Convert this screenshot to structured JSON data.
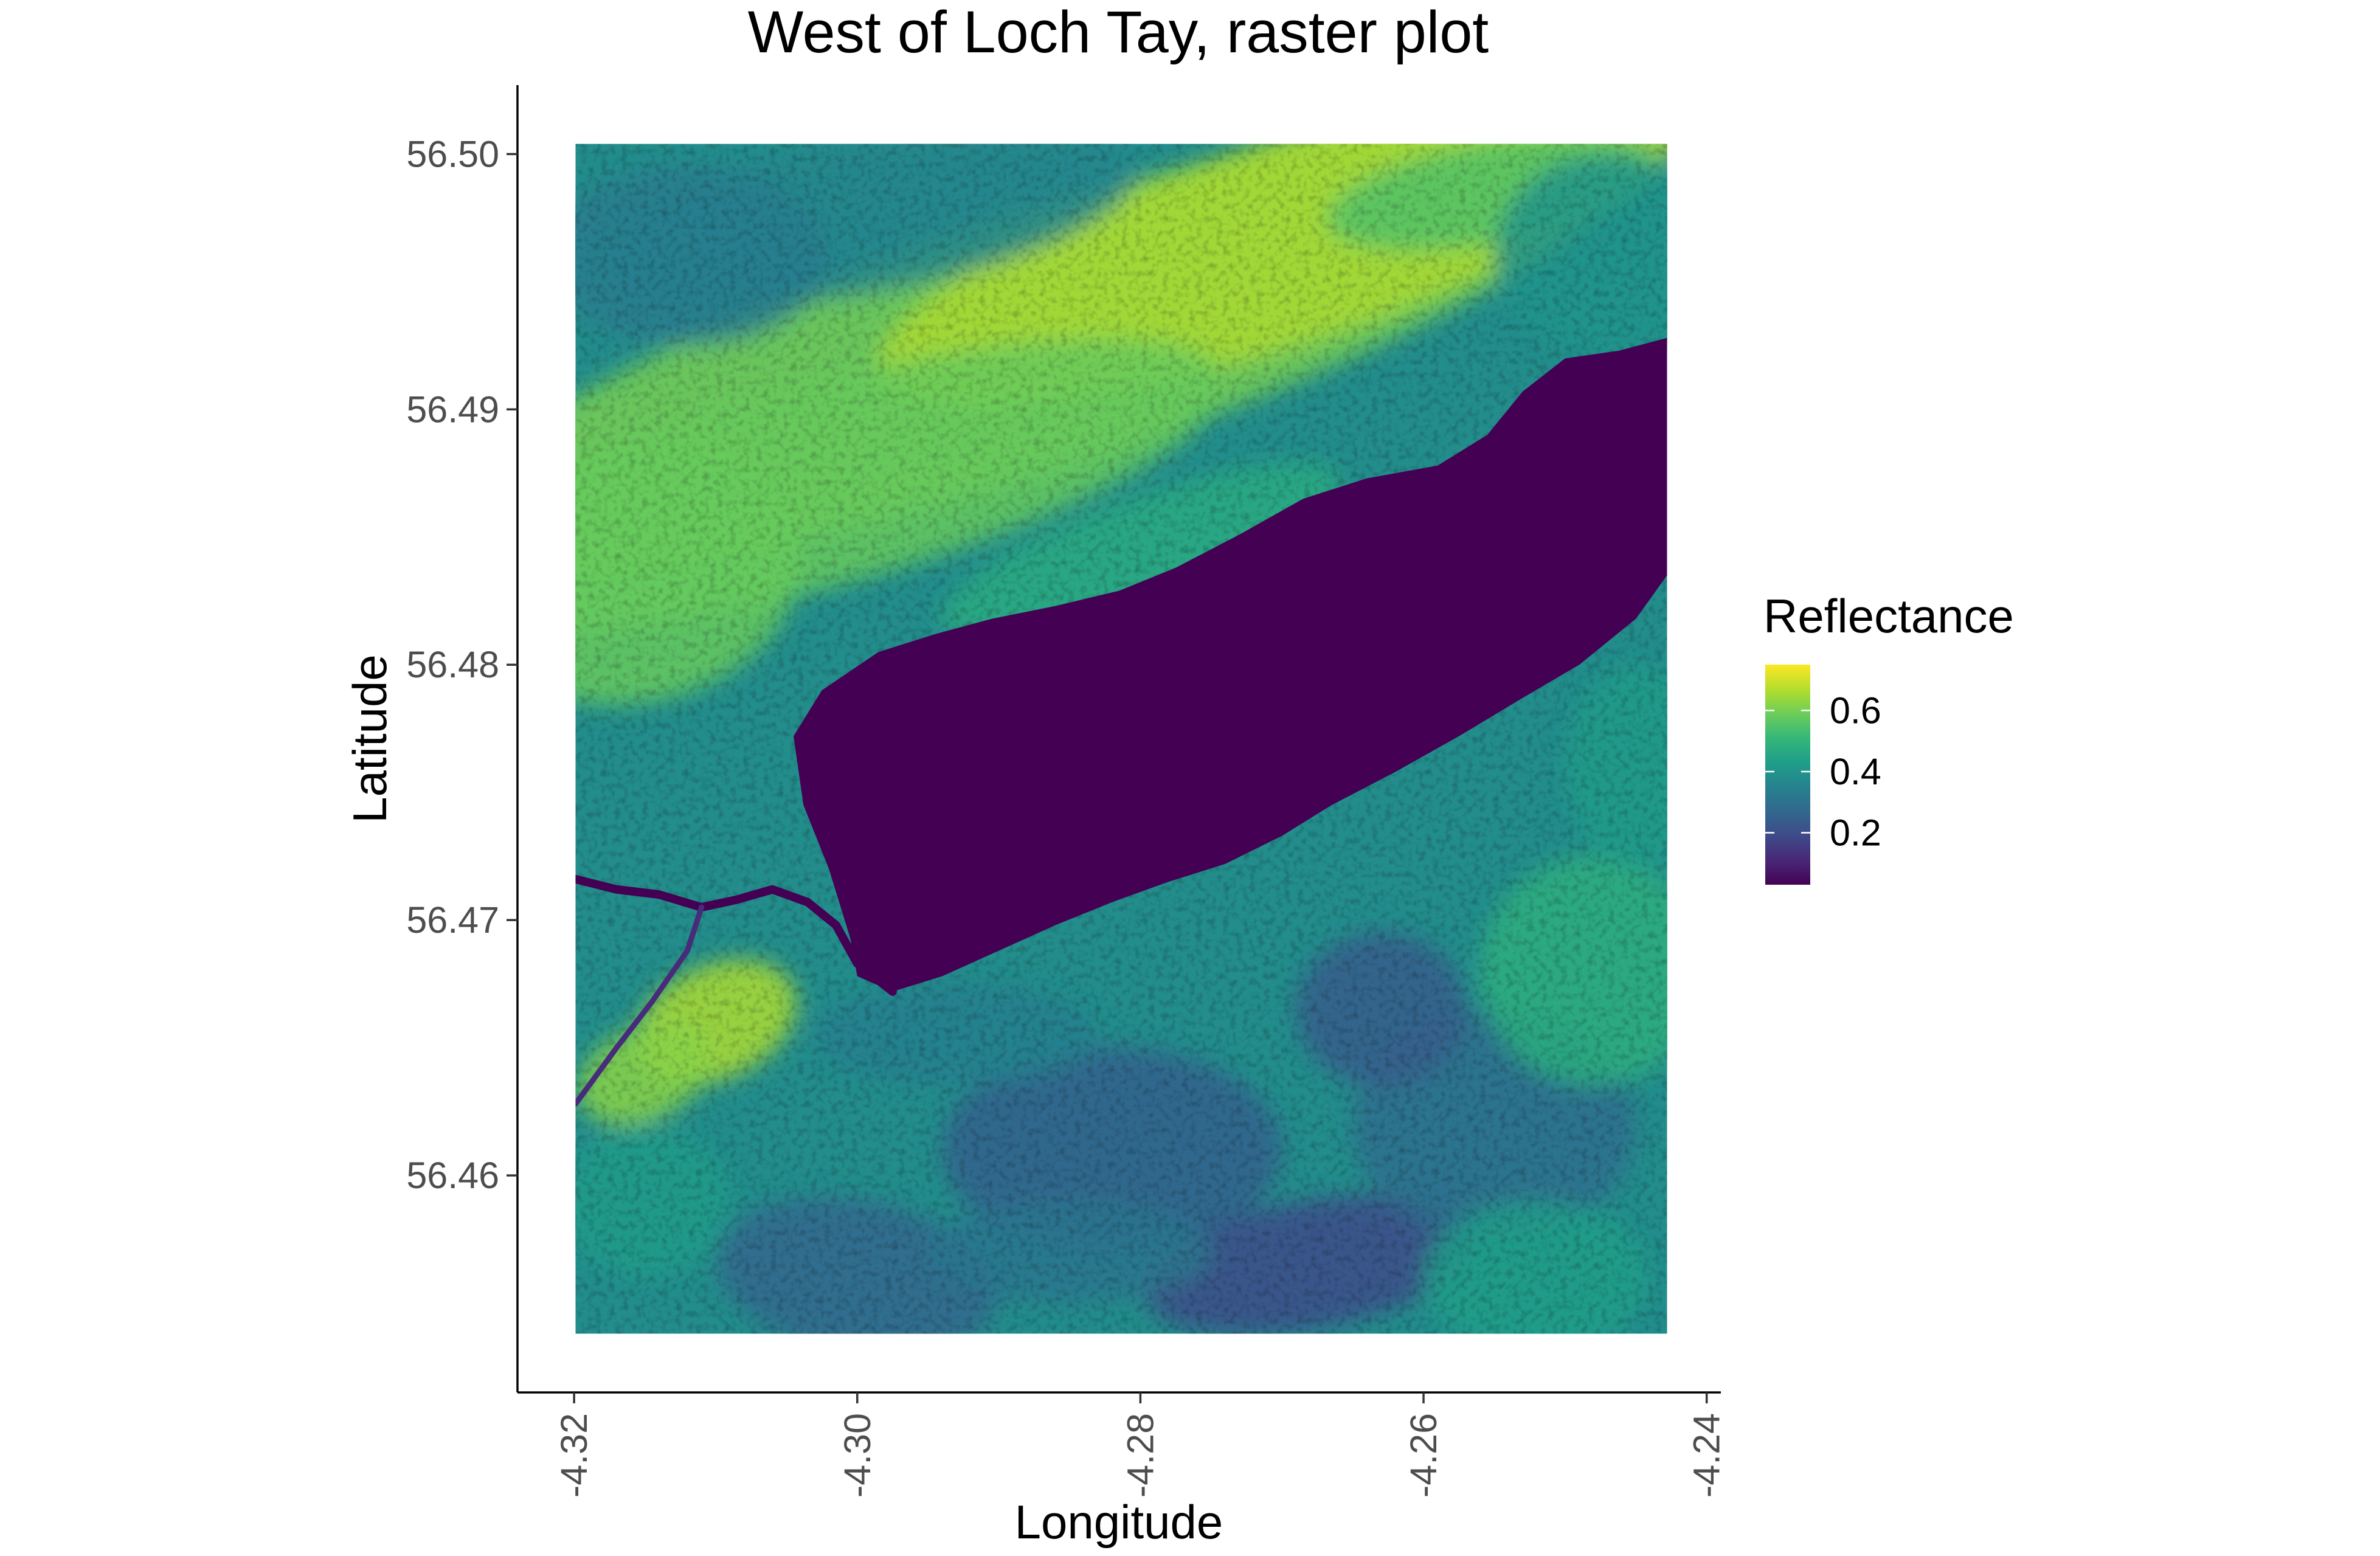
{
  "chart_data": {
    "type": "heatmap",
    "title": "West of Loch Tay, raster plot",
    "xlabel": "Longitude",
    "ylabel": "Latitude",
    "xlim": [
      -4.324,
      -4.239
    ],
    "ylim": [
      56.4515,
      56.5027
    ],
    "raster_extent": {
      "x": [
        -4.3199,
        -4.2428
      ],
      "y": [
        56.4538,
        56.5004
      ]
    },
    "x_ticks": [
      -4.32,
      -4.3,
      -4.28,
      -4.26,
      -4.24
    ],
    "x_tick_labels": [
      "-4.32",
      "-4.30",
      "-4.28",
      "-4.26",
      "-4.24"
    ],
    "y_ticks": [
      56.46,
      56.47,
      56.48,
      56.49,
      56.5
    ],
    "y_tick_labels": [
      "56.46",
      "56.47",
      "56.48",
      "56.49",
      "56.50"
    ],
    "grid": false,
    "colorscale": "viridis",
    "legend": {
      "title": "Reflectance",
      "placement": "right",
      "range": [
        0.03,
        0.75
      ],
      "ticks": [
        0.2,
        0.4,
        0.6
      ],
      "tick_labels": [
        "0.2",
        "0.4",
        "0.6"
      ]
    },
    "loch_value": 0.03,
    "loch_outline": [
      [
        -4.3025,
        56.479
      ],
      [
        -4.2985,
        56.4805
      ],
      [
        -4.2945,
        56.4812
      ],
      [
        -4.2905,
        56.4818
      ],
      [
        -4.286,
        56.4823
      ],
      [
        -4.2815,
        56.4829
      ],
      [
        -4.2775,
        56.4838
      ],
      [
        -4.273,
        56.4851
      ],
      [
        -4.2685,
        56.4865
      ],
      [
        -4.264,
        56.4873
      ],
      [
        -4.259,
        56.4878
      ],
      [
        -4.2555,
        56.489
      ],
      [
        -4.253,
        56.4907
      ],
      [
        -4.25,
        56.492
      ],
      [
        -4.2462,
        56.4923
      ],
      [
        -4.2428,
        56.4928
      ],
      [
        -4.2428,
        56.4835
      ],
      [
        -4.245,
        56.4818
      ],
      [
        -4.249,
        56.48
      ],
      [
        -4.253,
        56.4787
      ],
      [
        -4.2575,
        56.4772
      ],
      [
        -4.262,
        56.4758
      ],
      [
        -4.2665,
        56.4745
      ],
      [
        -4.27,
        56.4733
      ],
      [
        -4.274,
        56.4722
      ],
      [
        -4.278,
        56.4715
      ],
      [
        -4.282,
        56.4707
      ],
      [
        -4.286,
        56.4698
      ],
      [
        -4.29,
        56.4688
      ],
      [
        -4.294,
        56.4678
      ],
      [
        -4.2975,
        56.4672
      ],
      [
        -4.3,
        56.4678
      ],
      [
        -4.3005,
        56.4693
      ],
      [
        -4.302,
        56.472
      ],
      [
        -4.3038,
        56.4745
      ],
      [
        -4.3045,
        56.4772
      ]
    ],
    "river_path": [
      [
        -4.3199,
        56.4716
      ],
      [
        -4.317,
        56.4712
      ],
      [
        -4.314,
        56.471
      ],
      [
        -4.311,
        56.4705
      ],
      [
        -4.3085,
        56.4708
      ],
      [
        -4.306,
        56.4712
      ],
      [
        -4.3035,
        56.4707
      ],
      [
        -4.3015,
        56.4698
      ],
      [
        -4.3,
        56.4683
      ],
      [
        -4.2975,
        56.4672
      ]
    ],
    "river_branch": [
      [
        -4.311,
        56.4705
      ],
      [
        -4.312,
        56.4688
      ],
      [
        -4.3145,
        56.4668
      ],
      [
        -4.317,
        56.465
      ],
      [
        -4.3199,
        56.4628
      ]
    ]
  }
}
